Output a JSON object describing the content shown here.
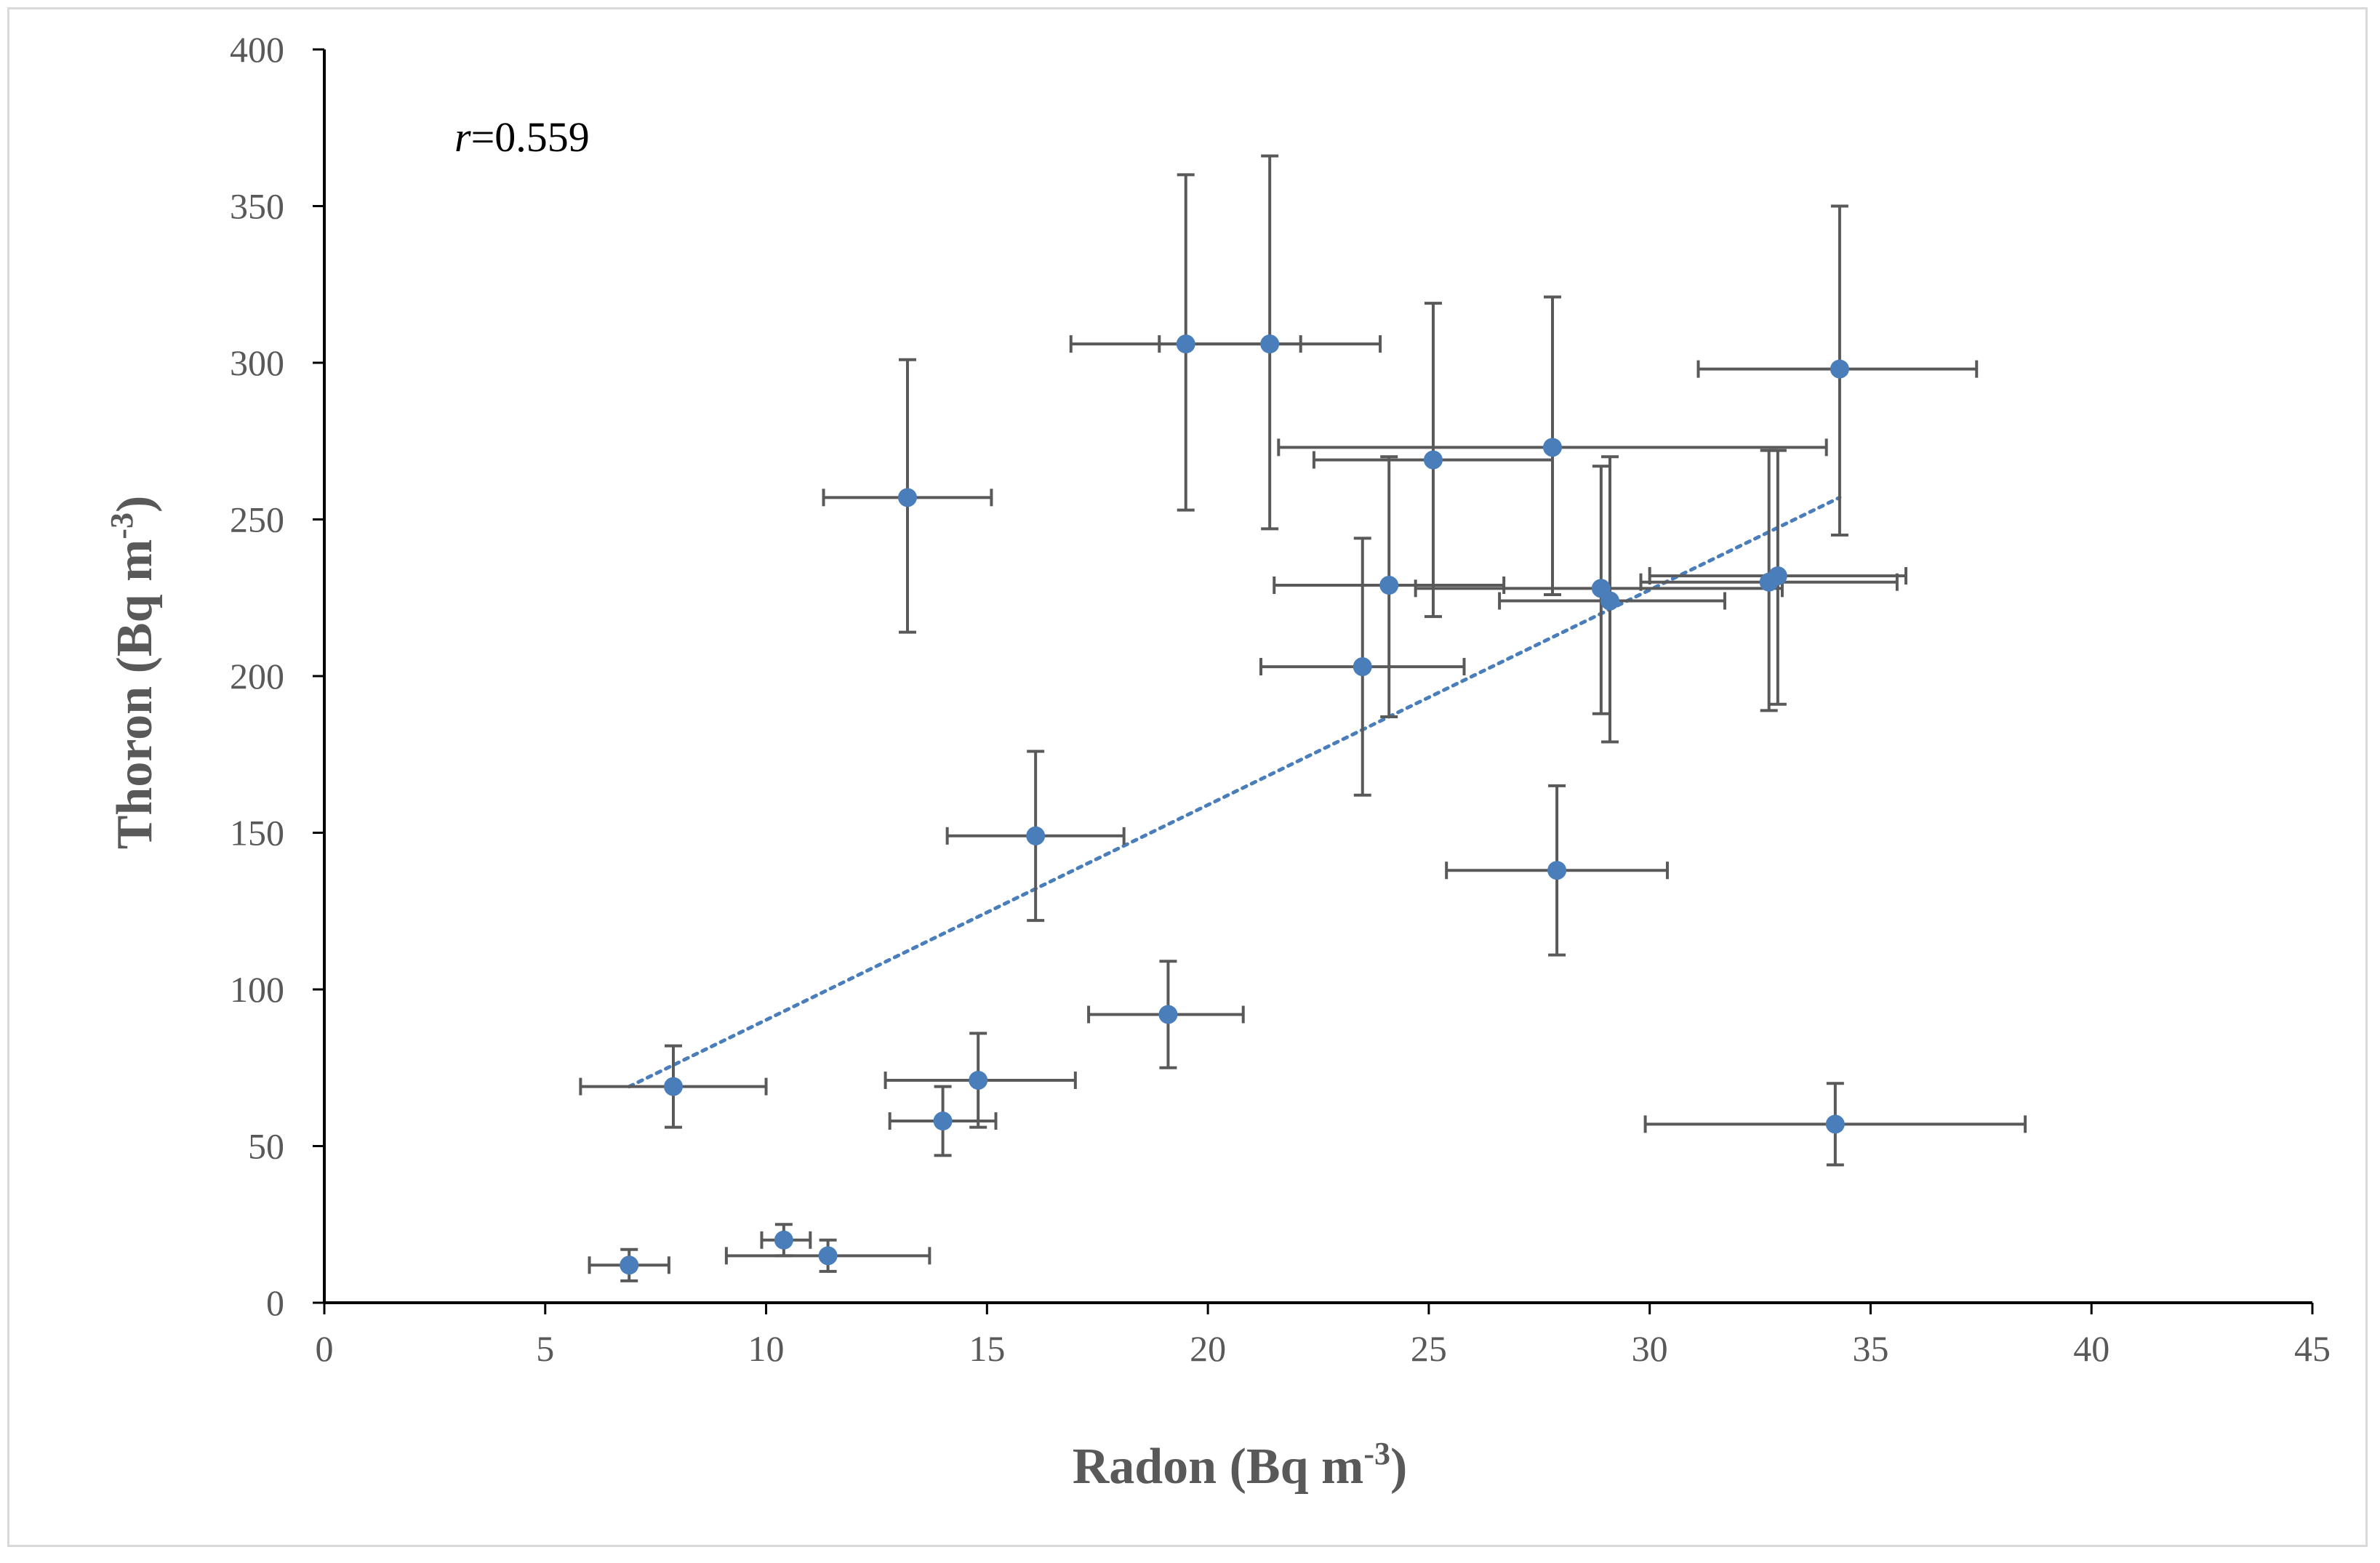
{
  "chart_data": {
    "type": "scatter",
    "title": "",
    "annotation": {
      "var": "r",
      "text": "=0.559"
    },
    "xlabel": {
      "base": "Radon (Bq m",
      "sup": "-3",
      "close": ")"
    },
    "ylabel": {
      "base": "Thoron (Bq m",
      "sup": "-3",
      "close": ")"
    },
    "xlim": [
      0,
      45
    ],
    "ylim": [
      0,
      400
    ],
    "xticks": [
      0,
      5,
      10,
      15,
      20,
      25,
      30,
      35,
      40,
      45
    ],
    "yticks": [
      0,
      50,
      100,
      150,
      200,
      250,
      300,
      350,
      400
    ],
    "grid": false,
    "colors": {
      "point": "#4a7ebb",
      "errorbar": "#595959",
      "trendline": "#4a7ebb",
      "axis": "#000000"
    },
    "points": [
      {
        "x": 6.9,
        "y": 12,
        "xerr": [
          6.0,
          7.8
        ],
        "yerr": [
          7,
          17
        ]
      },
      {
        "x": 7.9,
        "y": 69,
        "xerr": [
          5.8,
          10.0
        ],
        "yerr": [
          56,
          82
        ]
      },
      {
        "x": 10.4,
        "y": 20,
        "xerr": [
          9.9,
          11.0
        ],
        "yerr": [
          15,
          25
        ]
      },
      {
        "x": 11.4,
        "y": 15,
        "xerr": [
          9.1,
          13.7
        ],
        "yerr": [
          10,
          20
        ]
      },
      {
        "x": 14.0,
        "y": 58,
        "xerr": [
          12.8,
          15.2
        ],
        "yerr": [
          47,
          69
        ]
      },
      {
        "x": 14.8,
        "y": 71,
        "xerr": [
          12.7,
          17.0
        ],
        "yerr": [
          56,
          86
        ]
      },
      {
        "x": 13.2,
        "y": 257,
        "xerr": [
          11.3,
          15.1
        ],
        "yerr": [
          214,
          301
        ]
      },
      {
        "x": 16.1,
        "y": 149,
        "xerr": [
          14.1,
          18.1
        ],
        "yerr": [
          122,
          176
        ]
      },
      {
        "x": 19.1,
        "y": 92,
        "xerr": [
          17.3,
          20.8
        ],
        "yerr": [
          75,
          109
        ]
      },
      {
        "x": 19.5,
        "y": 306,
        "xerr": [
          16.9,
          22.1
        ],
        "yerr": [
          253,
          360
        ]
      },
      {
        "x": 21.4,
        "y": 306,
        "xerr": [
          18.9,
          23.9
        ],
        "yerr": [
          247,
          366
        ]
      },
      {
        "x": 23.5,
        "y": 203,
        "xerr": [
          21.2,
          25.8
        ],
        "yerr": [
          162,
          244
        ]
      },
      {
        "x": 24.1,
        "y": 229,
        "xerr": [
          21.5,
          26.7
        ],
        "yerr": [
          187,
          270
        ]
      },
      {
        "x": 25.1,
        "y": 269,
        "xerr": [
          22.4,
          27.8
        ],
        "yerr": [
          219,
          319
        ]
      },
      {
        "x": 27.8,
        "y": 273,
        "xerr": [
          21.6,
          34.0
        ],
        "yerr": [
          226,
          321
        ]
      },
      {
        "x": 27.9,
        "y": 138,
        "xerr": [
          25.4,
          30.4
        ],
        "yerr": [
          111,
          165
        ]
      },
      {
        "x": 28.9,
        "y": 228,
        "xerr": [
          24.7,
          33.0
        ],
        "yerr": [
          188,
          267
        ]
      },
      {
        "x": 29.1,
        "y": 224,
        "xerr": [
          26.6,
          31.7
        ],
        "yerr": [
          179,
          270
        ]
      },
      {
        "x": 32.7,
        "y": 230,
        "xerr": [
          29.8,
          35.6
        ],
        "yerr": [
          189,
          272
        ]
      },
      {
        "x": 32.9,
        "y": 232,
        "xerr": [
          30.0,
          35.8
        ],
        "yerr": [
          191,
          272
        ]
      },
      {
        "x": 34.3,
        "y": 298,
        "xerr": [
          31.1,
          37.4
        ],
        "yerr": [
          245,
          350
        ]
      },
      {
        "x": 34.2,
        "y": 57,
        "xerr": [
          29.9,
          38.5
        ],
        "yerr": [
          44,
          70
        ]
      }
    ],
    "trendline": {
      "style": "dotted",
      "x": [
        6.9,
        34.3
      ],
      "y": [
        69,
        257
      ]
    }
  }
}
